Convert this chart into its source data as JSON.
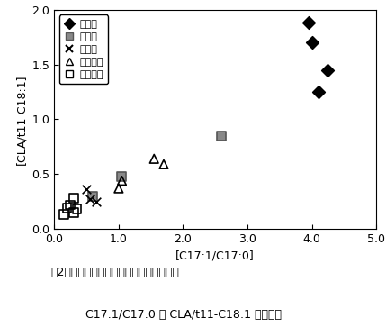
{
  "title_line1": "図2．山羊の黄色骨髄と脂肪組織における",
  "title_line2": "C17:1/C17:0 と CLA/t11-C18:1 との関係",
  "xlabel": "[C17:1/C17:0]",
  "ylabel": "[CLA/t11-C18:1]",
  "xlim": [
    0.0,
    5.0
  ],
  "ylim": [
    0.0,
    2.0
  ],
  "xticks": [
    0.0,
    1.0,
    2.0,
    3.0,
    4.0,
    5.0
  ],
  "yticks": [
    0.0,
    0.5,
    1.0,
    1.5,
    2.0
  ],
  "series": {
    "中足骨": {
      "x": [
        3.95,
        4.0,
        4.25,
        4.1
      ],
      "y": [
        1.88,
        1.7,
        1.45,
        1.25
      ],
      "marker": "D",
      "edgecolor": "black",
      "facecolor": "black",
      "size": 48
    },
    "下腿骨": {
      "x": [
        0.6,
        1.05,
        2.6
      ],
      "y": [
        0.3,
        0.48,
        0.85
      ],
      "marker": "s",
      "edgecolor": "#555555",
      "facecolor": "#888888",
      "size": 48
    },
    "大腿骨": {
      "x": [
        0.5,
        0.55,
        0.65
      ],
      "y": [
        0.36,
        0.27,
        0.25
      ],
      "marker": "x",
      "edgecolor": "black",
      "facecolor": "black",
      "size": 48
    },
    "皮下脂肪": {
      "x": [
        1.05,
        1.55,
        1.7,
        1.0
      ],
      "y": [
        0.44,
        0.64,
        0.59,
        0.37
      ],
      "marker": "^",
      "edgecolor": "black",
      "facecolor": "none",
      "size": 48
    },
    "腎臓脂肪": {
      "x": [
        0.15,
        0.25,
        0.3,
        0.35,
        0.2,
        0.3
      ],
      "y": [
        0.13,
        0.22,
        0.28,
        0.18,
        0.19,
        0.15
      ],
      "marker": "s",
      "edgecolor": "black",
      "facecolor": "none",
      "size": 48
    }
  },
  "legend_order": [
    "中足骨",
    "下腿骨",
    "大腿骨",
    "皮下脂肪",
    "腎臓脂肪"
  ]
}
